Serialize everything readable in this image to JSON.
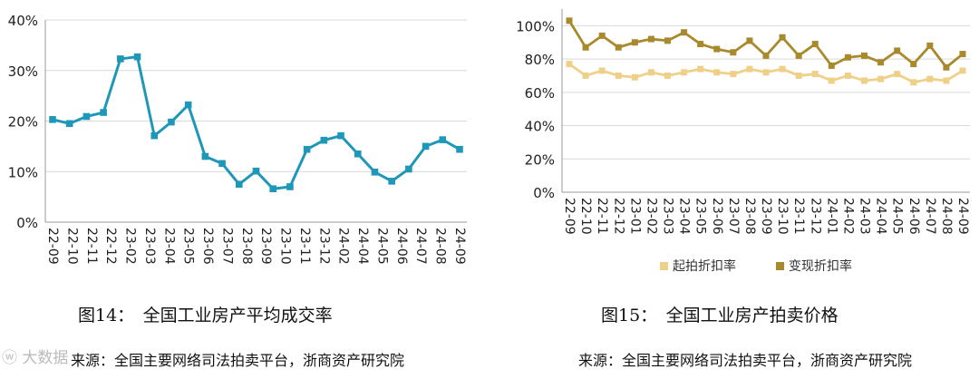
{
  "colors": {
    "chart1_line": "#1f97b9",
    "start_rate": "#efd089",
    "realize_rate": "#a88a2d",
    "grid": "#d9d9d9",
    "axis": "#9a9a9a"
  },
  "watermark": {
    "icon": "weibo-logo-icon",
    "text": "大数据"
  },
  "figures": [
    {
      "caption": "图14：　全国工业房产平均成交率",
      "source": "来源：全国主要网络司法拍卖平台，浙商资产研究院"
    },
    {
      "caption": "图15：　全国工业房产拍卖价格",
      "source": "来源：全国主要网络司法拍卖平台，浙商资产研究院"
    }
  ],
  "chart_data": [
    {
      "type": "line",
      "categories": [
        "22-09",
        "22-10",
        "22-11",
        "22-12",
        "23-01",
        "23-02",
        "23-03",
        "23-04",
        "23-05",
        "23-06",
        "23-07",
        "23-08",
        "23-09",
        "23-10",
        "23-11",
        "23-12",
        "24-01",
        "24-02",
        "24-03",
        "24-04",
        "24-05",
        "24-06",
        "24-07",
        "24-08",
        "24-09"
      ],
      "tick_labels": [
        "22-09",
        "22-10",
        "22-11",
        "22-12",
        "23-02",
        "23-03",
        "23-04",
        "23-05",
        "23-06",
        "23-07",
        "23-08",
        "23-09",
        "23-10",
        "23-11",
        "23-12",
        "24-02",
        "24-04",
        "24-05",
        "24-06",
        "24-07",
        "24-08",
        "24-09"
      ],
      "series": [
        {
          "values": [
            20.3,
            19.5,
            20.9,
            21.7,
            32.3,
            32.7,
            17.1,
            19.8,
            23.2,
            13.0,
            11.6,
            7.5,
            10.1,
            6.6,
            7.0,
            14.4,
            16.2,
            17.1,
            13.5,
            9.9,
            8.1,
            10.5,
            15.0,
            16.3,
            14.4
          ]
        }
      ],
      "ylim": [
        0,
        40
      ],
      "yticks": [
        "0%",
        "10%",
        "20%",
        "30%",
        "40%"
      ],
      "grid": "horizontal",
      "legend": "none"
    },
    {
      "type": "line",
      "categories": [
        "22-09",
        "22-10",
        "22-11",
        "22-12",
        "23-01",
        "23-02",
        "23-03",
        "23-04",
        "23-05",
        "23-06",
        "23-07",
        "23-08",
        "23-09",
        "23-10",
        "23-11",
        "23-12",
        "24-01",
        "24-02",
        "24-03",
        "24-04",
        "24-05",
        "24-06",
        "24-07",
        "24-08",
        "24-09"
      ],
      "tick_labels": [
        "22-09",
        "22-10",
        "22-11",
        "22-12",
        "23-01",
        "23-02",
        "23-03",
        "23-04",
        "23-05",
        "23-06",
        "23-07",
        "23-08",
        "23-09",
        "23-10",
        "23-11",
        "23-12",
        "24-01",
        "24-02",
        "24-03",
        "24-04",
        "24-05",
        "24-06",
        "24-07",
        "24-08",
        "24-09"
      ],
      "series": [
        {
          "name": "起拍折扣率",
          "color": "#efd089",
          "values": [
            77,
            70,
            73,
            70,
            69,
            72,
            70,
            72,
            74,
            72,
            71,
            74,
            72,
            74,
            70,
            71,
            67,
            70,
            67,
            68,
            71,
            66,
            68,
            67,
            73
          ]
        },
        {
          "name": "变现折扣率",
          "color": "#a88a2d",
          "values": [
            103,
            87,
            94,
            87,
            90,
            92,
            91,
            96,
            89,
            86,
            84,
            91,
            82,
            93,
            82,
            89,
            76,
            81,
            82,
            78,
            85,
            77,
            88,
            75,
            83
          ]
        }
      ],
      "ylim": [
        0,
        110
      ],
      "yticks": [
        "0%",
        "20%",
        "40%",
        "60%",
        "80%",
        "100%"
      ],
      "grid": "horizontal",
      "legend": "bottom"
    }
  ]
}
